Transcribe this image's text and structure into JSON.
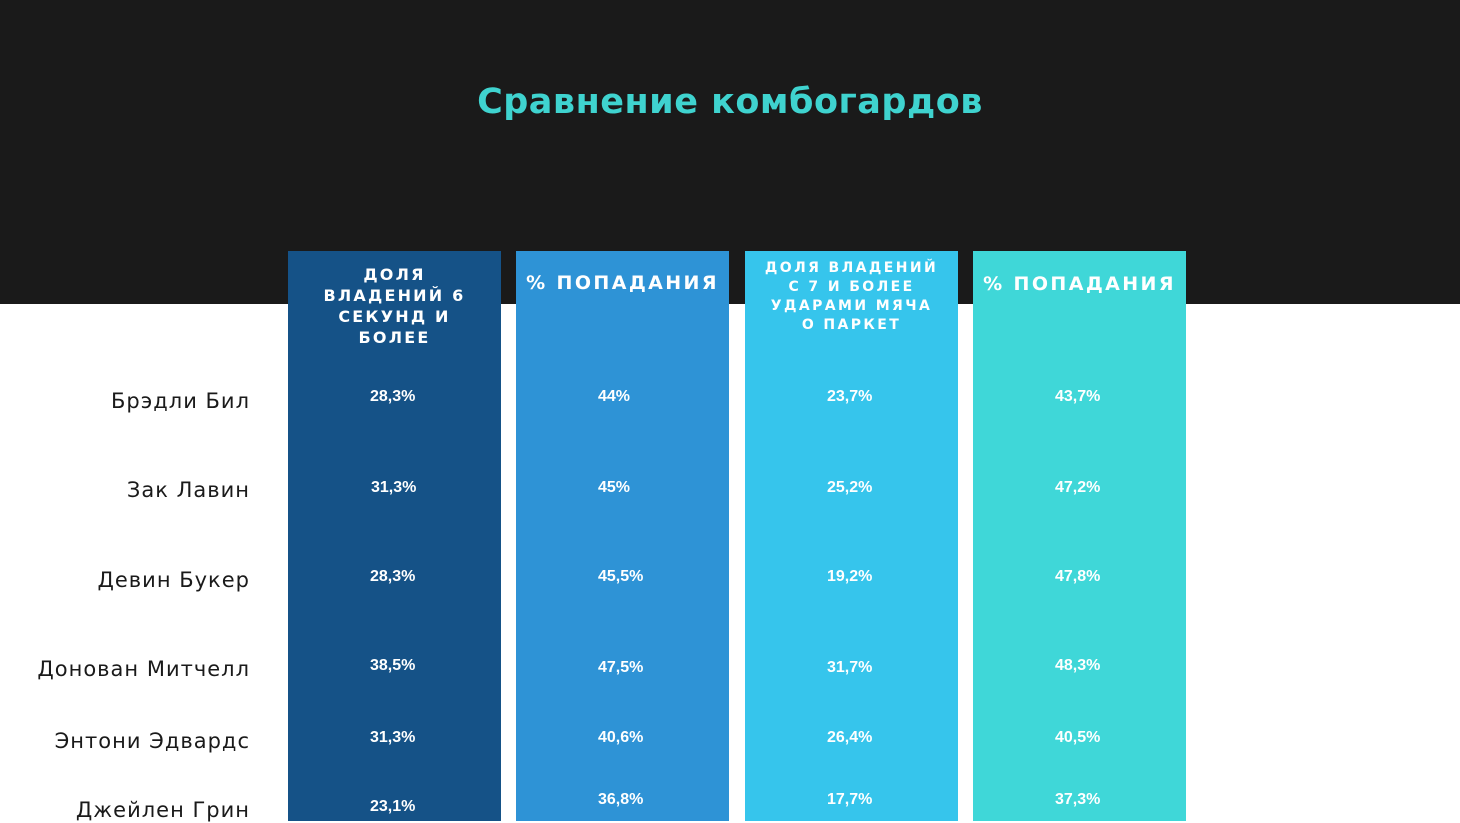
{
  "title": "Сравнение комбогардов",
  "columns": [
    {
      "header": "Доля владений 6 секунд и более"
    },
    {
      "header": "% попадания"
    },
    {
      "header": "Доля владений с 7 и более ударами мяча о паркет"
    },
    {
      "header": "% попадания"
    }
  ],
  "rows": [
    {
      "player": "Брэдли Бил",
      "values": [
        "28,3%",
        "44%",
        "23,7%",
        "43,7%"
      ]
    },
    {
      "player": "Зак Лавин",
      "values": [
        "31,3%",
        "45%",
        "25,2%",
        "47,2%"
      ]
    },
    {
      "player": "Девин Букер",
      "values": [
        "28,3%",
        "45,5%",
        "19,2%",
        "47,8%"
      ]
    },
    {
      "player": "Донован Митчелл",
      "values": [
        "38,5%",
        "47,5%",
        "31,7%",
        "48,3%"
      ]
    },
    {
      "player": "Энтони Эдвардс",
      "values": [
        "31,3%",
        "40,6%",
        "26,4%",
        "40,5%"
      ]
    },
    {
      "player": "Джейлен Грин",
      "values": [
        "23,1%",
        "36,8%",
        "17,7%",
        "37,3%"
      ]
    }
  ],
  "colors": {
    "background_top": "#1a1a1a",
    "background_bottom": "#ffffff",
    "title": "#3fd3cf",
    "column_1": "#155287",
    "column_2": "#2e93d6",
    "column_3": "#36c5ec",
    "column_4": "#3fd7d8"
  }
}
